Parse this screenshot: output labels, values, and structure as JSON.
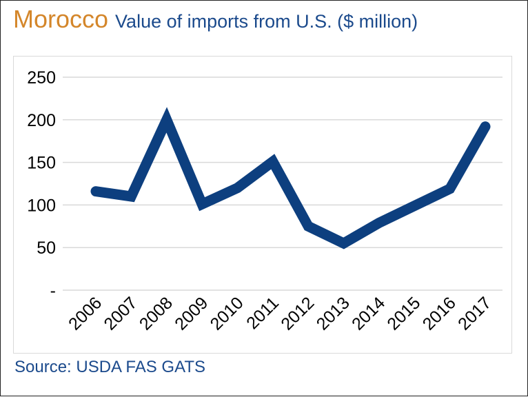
{
  "header": {
    "country": "Morocco",
    "subtitle": "Value of imports from U.S. ($ million)"
  },
  "footer": {
    "source": "Source: USDA FAS GATS"
  },
  "colors": {
    "accent": "#d4862a",
    "line": "#0d3f7f",
    "text_blue": "#1b4a8c",
    "grid": "#d9d9d9"
  },
  "chart_data": {
    "type": "line",
    "title": "Value of imports from U.S. ($ million)",
    "categories": [
      "2006",
      "2007",
      "2008",
      "2009",
      "2010",
      "2011",
      "2012",
      "2013",
      "2014",
      "2015",
      "2016",
      "2017"
    ],
    "values": [
      116,
      110,
      200,
      101,
      120,
      151,
      75,
      55,
      79,
      99,
      119,
      192
    ],
    "ylim": [
      0,
      250
    ],
    "yticks": [
      0,
      50,
      100,
      150,
      200,
      250
    ],
    "ytick_labels": [
      "-",
      "50",
      "100",
      "150",
      "200",
      "250"
    ],
    "grid": true,
    "legend": "none"
  }
}
